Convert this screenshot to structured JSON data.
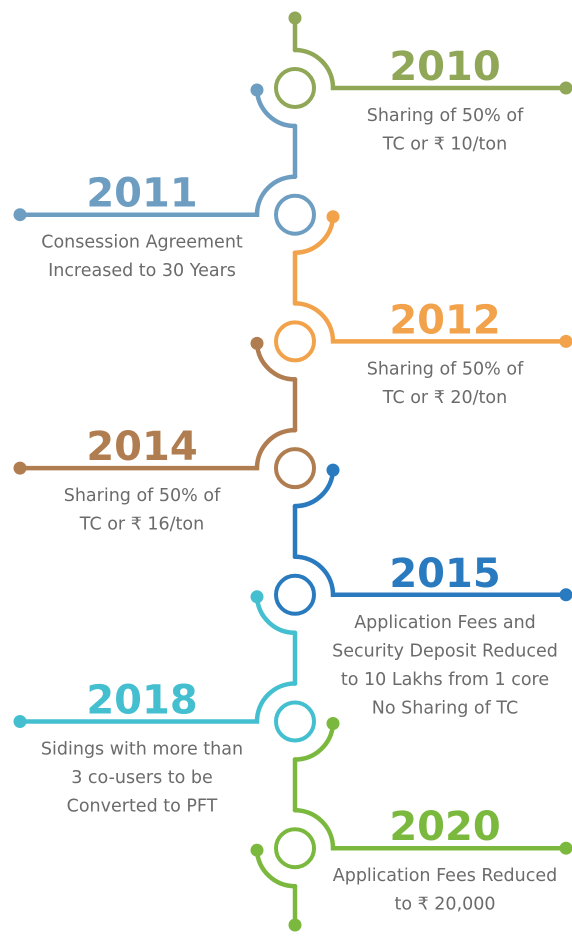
{
  "events": [
    {
      "year": "2010",
      "side": "right",
      "color": "#8fa756",
      "lines": [
        "Sharing of 50% of",
        "TC or ₹ 10/ton"
      ]
    },
    {
      "year": "2011",
      "side": "left",
      "color": "#6d9dc1",
      "lines": [
        "Consession Agreement",
        "Increased to 30 Years"
      ]
    },
    {
      "year": "2012",
      "side": "right",
      "color": "#f2a24a",
      "lines": [
        "Sharing of 50% of",
        "TC or ₹ 20/ton"
      ]
    },
    {
      "year": "2014",
      "side": "left",
      "color": "#b07d50",
      "lines": [
        "Sharing of 50% of",
        "TC or ₹ 16/ton"
      ]
    },
    {
      "year": "2015",
      "side": "right",
      "color": "#2a7abf",
      "lines": [
        "Application Fees and",
        "Security Deposit Reduced",
        "to 10 Lakhs from 1 core",
        "No Sharing of TC"
      ]
    },
    {
      "year": "2018",
      "side": "left",
      "color": "#43bfd0",
      "lines": [
        "Sidings with more than",
        "3 co-users to be",
        "Converted to PFT"
      ]
    },
    {
      "year": "2020",
      "side": "right",
      "color": "#7bb93e",
      "lines": [
        "Application Fees Reduced",
        "to ₹ 20,000"
      ]
    }
  ]
}
